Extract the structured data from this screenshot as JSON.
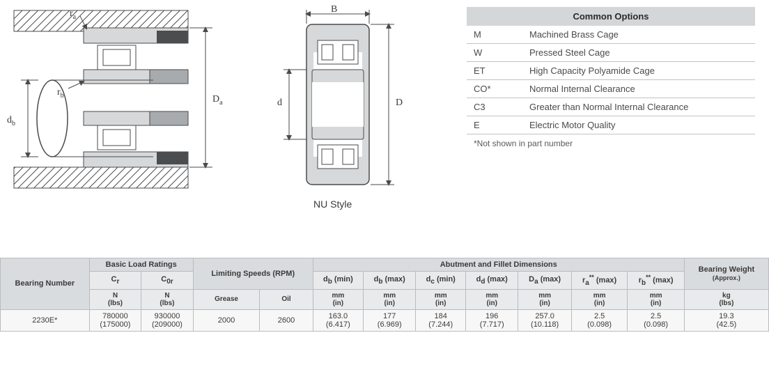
{
  "diagram": {
    "label_ra": "rₐ",
    "label_rb": "r_b",
    "label_db": "d_b",
    "label_Da": "Dₐ",
    "label_B": "B",
    "label_d": "d",
    "label_D": "D",
    "style_label": "NU Style",
    "colors": {
      "stroke": "#4a4a4a",
      "fill_light": "#d6d8da",
      "fill_mid": "#a8abad",
      "fill_dark": "#4b4d4f",
      "hatch": "#4a4a4a"
    }
  },
  "options": {
    "header": "Common Options",
    "rows": [
      {
        "code": "M",
        "desc": "Machined Brass Cage"
      },
      {
        "code": "W",
        "desc": "Pressed Steel Cage"
      },
      {
        "code": "ET",
        "desc": "High Capacity Polyamide Cage"
      },
      {
        "code": "CO*",
        "desc": "Normal Internal Clearance"
      },
      {
        "code": "C3",
        "desc": "Greater than Normal Internal Clearance"
      },
      {
        "code": "E",
        "desc": "Electric Motor Quality"
      }
    ],
    "footnote": "*Not shown in part number"
  },
  "specs": {
    "groups": {
      "bearing_number": "Bearing Number",
      "basic_load": "Basic Load Ratings",
      "limiting_speeds": "Limiting Speeds (RPM)",
      "abutment": "Abutment and Fillet Dimensions",
      "weight": "Bearing Weight",
      "weight_sub": "(Approx.)"
    },
    "cols": {
      "cr": "Cᵣ",
      "cor": "C₀ᵣ",
      "grease": "Grease",
      "oil": "Oil",
      "db_min": "d_b (min)",
      "db_max": "d_b (max)",
      "dc_min": "d_c (min)",
      "dd_max": "d_d (max)",
      "Da_max": "Dₐ (max)",
      "ra_max": "rₐ** (max)",
      "rb_max": "r_b** (max)"
    },
    "units": {
      "n_lbs": "N\n(lbs)",
      "mm_in": "mm\n(in)",
      "kg_lbs": "kg\n(lbs)"
    },
    "row": {
      "bn": "2230E*",
      "cr_n": "780000",
      "cr_lbs": "(175000)",
      "cor_n": "930000",
      "cor_lbs": "(209000)",
      "grease": "2000",
      "oil": "2600",
      "db_min_mm": "163.0",
      "db_min_in": "(6.417)",
      "db_max_mm": "177",
      "db_max_in": "(6.969)",
      "dc_min_mm": "184",
      "dc_min_in": "(7.244)",
      "dd_max_mm": "196",
      "dd_max_in": "(7.717)",
      "Da_max_mm": "257.0",
      "Da_max_in": "(10.118)",
      "ra_max_mm": "2.5",
      "ra_max_in": "(0.098)",
      "rb_max_mm": "2.5",
      "rb_max_in": "(0.098)",
      "wt_kg": "19.3",
      "wt_lbs": "(42.5)"
    }
  }
}
